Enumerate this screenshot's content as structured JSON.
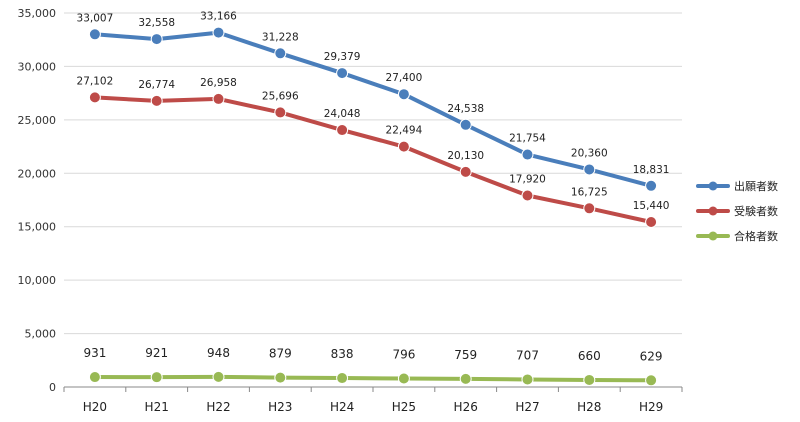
{
  "chart_data": {
    "type": "line",
    "categories": [
      "H20",
      "H21",
      "H22",
      "H23",
      "H24",
      "H25",
      "H26",
      "H27",
      "H28",
      "H29"
    ],
    "series": [
      {
        "name": "出願者数",
        "color": "#4a7ebb",
        "values": [
          33007,
          32558,
          33166,
          31228,
          29379,
          27400,
          24538,
          21754,
          20360,
          18831
        ],
        "labels": [
          "33,007",
          "32,558",
          "33,166",
          "31,228",
          "29,379",
          "27,400",
          "24,538",
          "21,754",
          "20,360",
          "18,831"
        ]
      },
      {
        "name": "受験者数",
        "color": "#be4b48",
        "values": [
          27102,
          26774,
          26958,
          25696,
          24048,
          22494,
          20130,
          17920,
          16725,
          15440
        ],
        "labels": [
          "27,102",
          "26,774",
          "26,958",
          "25,696",
          "24,048",
          "22,494",
          "20,130",
          "17,920",
          "16,725",
          "15,440"
        ]
      },
      {
        "name": "合格者数",
        "color": "#98b954",
        "values": [
          931,
          921,
          948,
          879,
          838,
          796,
          759,
          707,
          660,
          629
        ],
        "labels": [
          "931",
          "921",
          "948",
          "879",
          "838",
          "796",
          "759",
          "707",
          "660",
          "629"
        ]
      }
    ],
    "ylim": [
      0,
      35000
    ],
    "yticks": [
      0,
      5000,
      10000,
      15000,
      20000,
      25000,
      30000,
      35000
    ],
    "ytick_labels": [
      "0",
      "5,000",
      "10,000",
      "15,000",
      "20,000",
      "25,000",
      "30,000",
      "35,000"
    ],
    "grid": true,
    "legend_position": "right",
    "title": "",
    "xlabel": "",
    "ylabel": ""
  }
}
